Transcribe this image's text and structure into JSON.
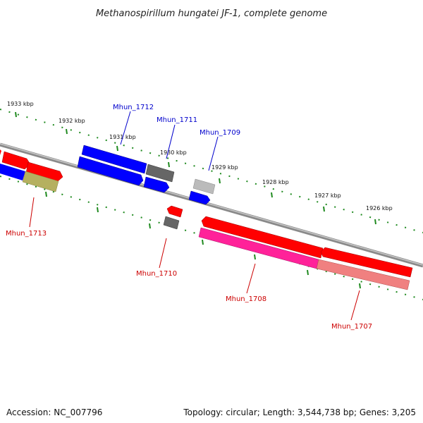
{
  "title": "Methanospirillum hungatei JF-1, complete genome",
  "accession": "Accession: NC_007796",
  "summary": "Topology: circular; Length: 3,544,738 bp; Genes: 3,205",
  "colors": {
    "backbone": "#7a7a7a",
    "ticks": "#1f8a1f",
    "forward_label": "#0000cc",
    "reverse_label": "#cc0000",
    "red": "#ff0000",
    "blue": "#0000ff",
    "magenta": "#ff2299",
    "pink": "#f08080",
    "gray": "#666666",
    "light_gray": "#bbbbbb",
    "olive": "#b5b060"
  },
  "kbp_labels": [
    "1933 kbp",
    "1932 kbp",
    "1931 kbp",
    "1930 kbp",
    "1929 kbp",
    "1928 kbp",
    "1927 kbp",
    "1926 kbp"
  ],
  "gene_labels": [
    {
      "name": "Mhun_1712",
      "strand": "forward"
    },
    {
      "name": "Mhun_1711",
      "strand": "forward"
    },
    {
      "name": "Mhun_1709",
      "strand": "forward"
    },
    {
      "name": "Mhun_1713",
      "strand": "reverse"
    },
    {
      "name": "Mhun_1710",
      "strand": "reverse"
    },
    {
      "name": "Mhun_1708",
      "strand": "reverse"
    },
    {
      "name": "Mhun_1707",
      "strand": "reverse"
    }
  ]
}
